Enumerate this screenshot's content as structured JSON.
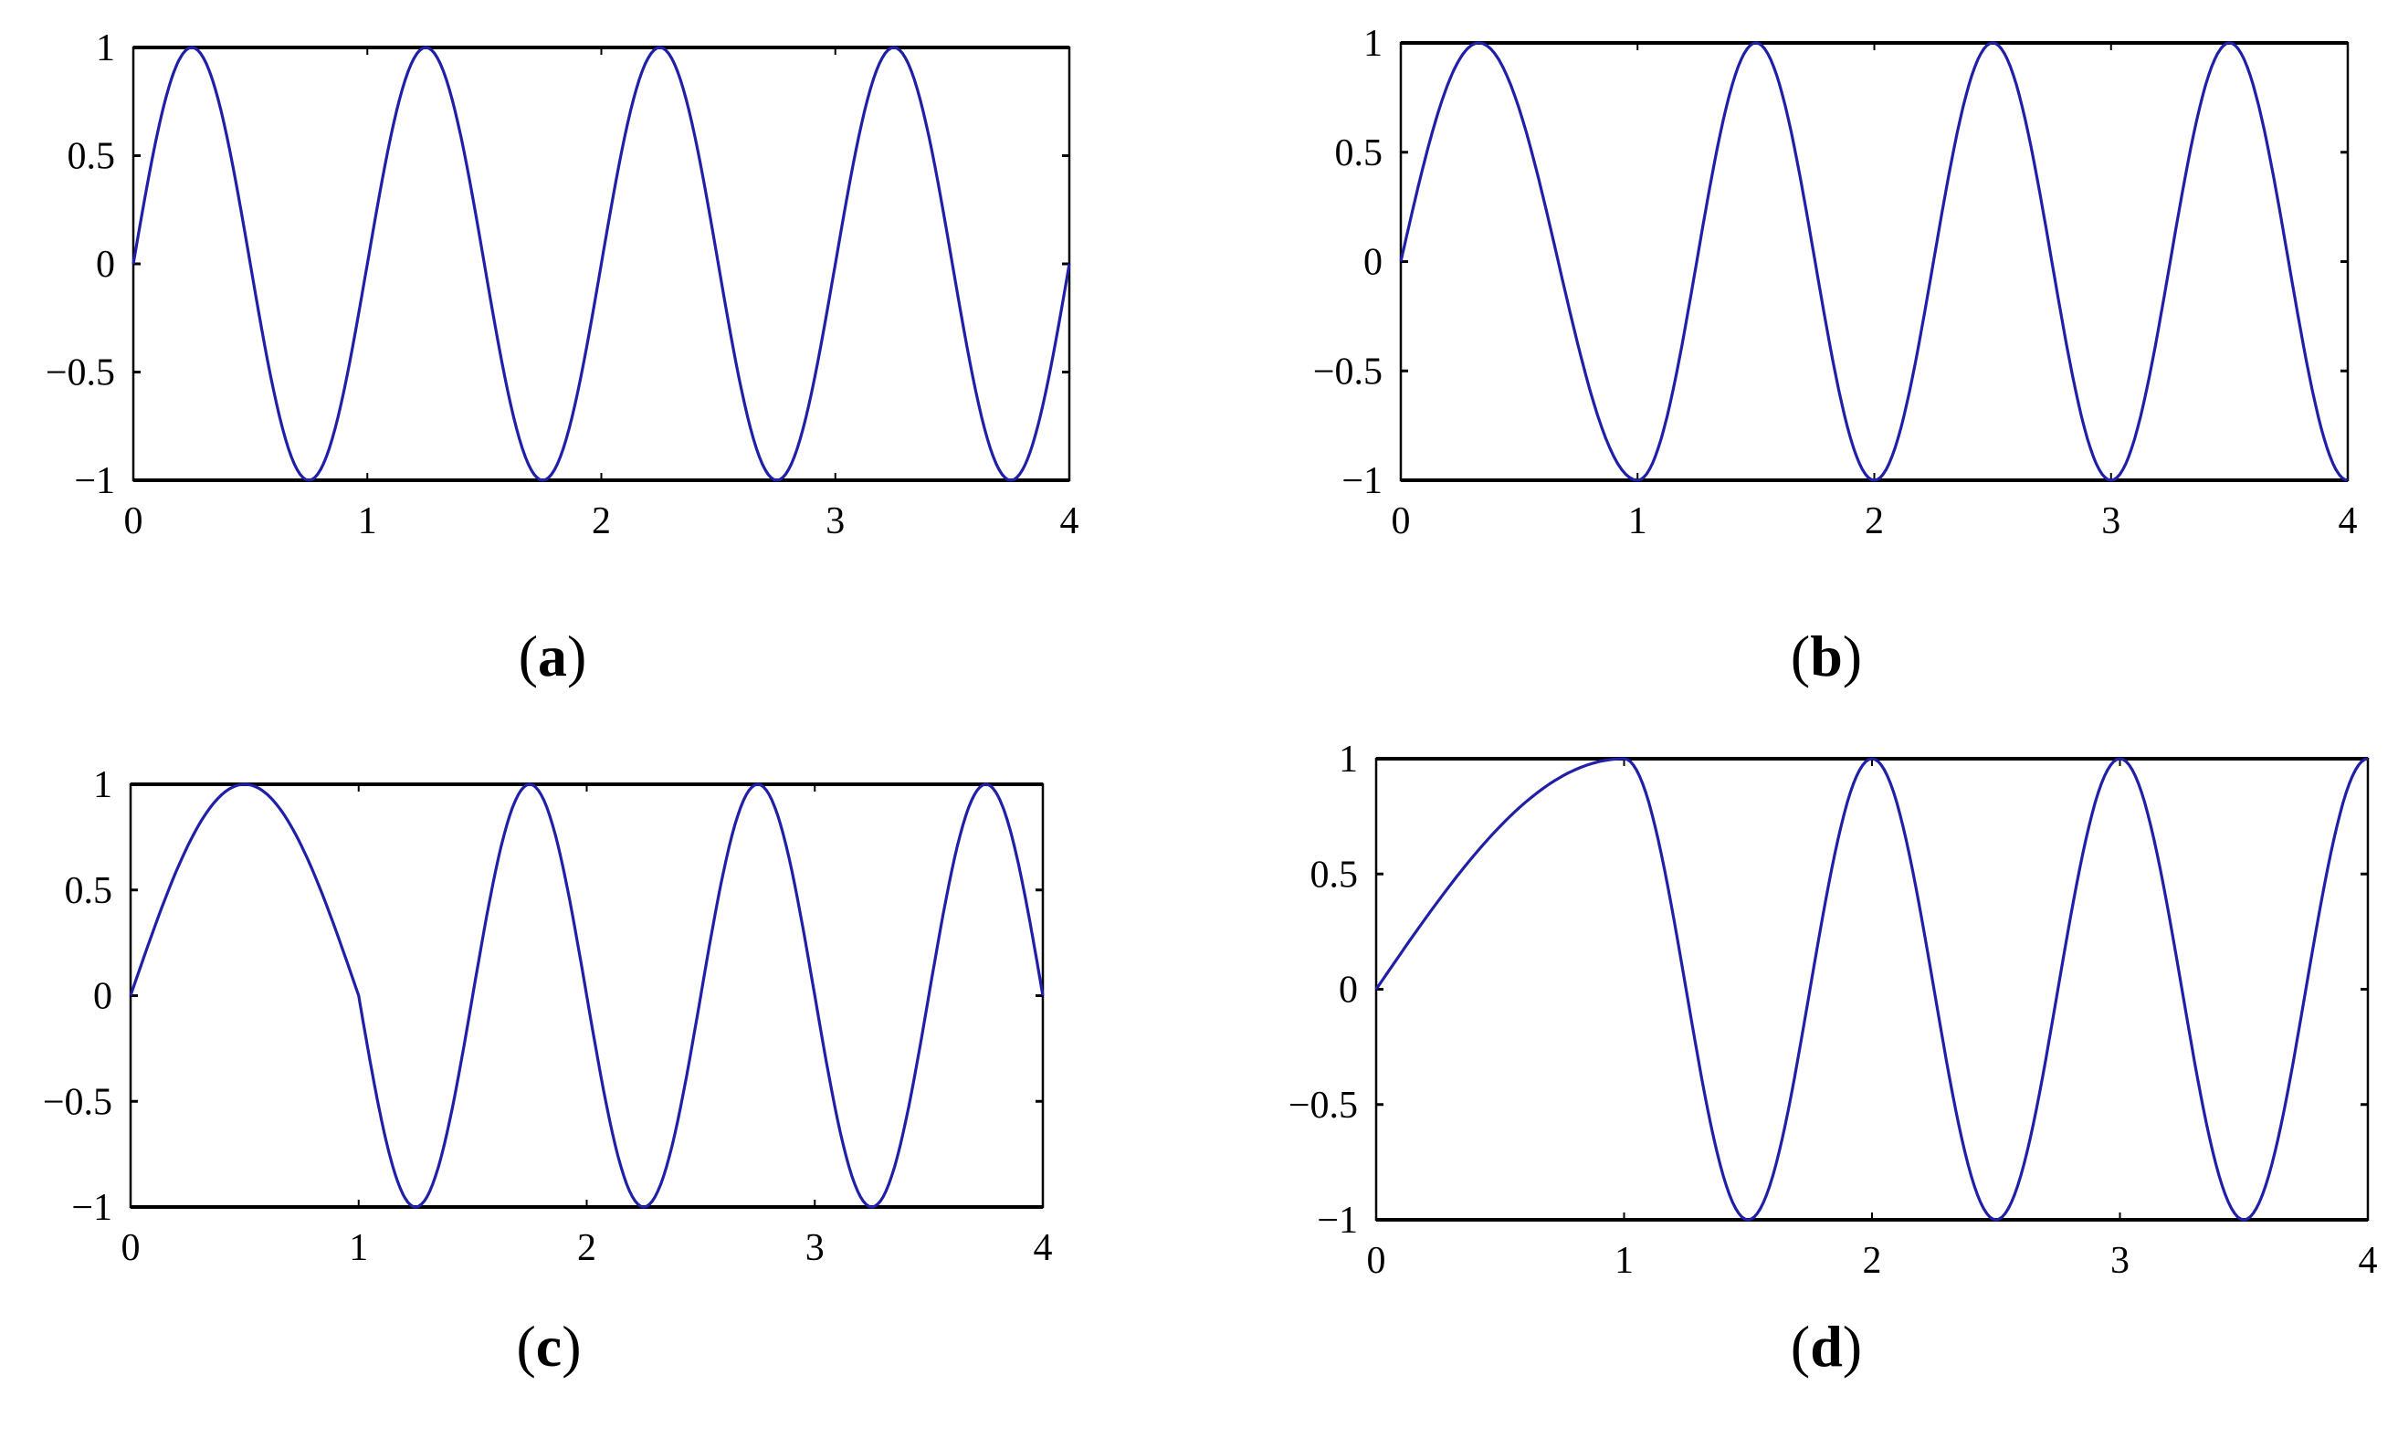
{
  "chart_data": [
    {
      "type": "line",
      "panel_label": "a",
      "xlim": [
        0,
        4
      ],
      "ylim": [
        -1,
        1
      ],
      "xticks": [
        "0",
        "1",
        "2",
        "3",
        "4"
      ],
      "yticks": [
        "1",
        "0.5",
        "0",
        "−0.5",
        "−1"
      ],
      "xtick_values": [
        0,
        1,
        2,
        3,
        4
      ],
      "ytick_values": [
        1,
        0.5,
        0,
        -0.5,
        -1
      ],
      "grid": false,
      "line_color": "#1f1fa8",
      "series": [
        {
          "x": [
            0,
            0.25,
            0.75,
            1.25,
            1.75,
            2.25,
            2.75,
            3.25,
            3.75,
            4
          ],
          "y": [
            0,
            1,
            -1,
            1,
            -1,
            1,
            -1,
            1,
            -1,
            0
          ]
        }
      ]
    },
    {
      "type": "line",
      "panel_label": "b",
      "xlim": [
        0,
        4
      ],
      "ylim": [
        -1,
        1
      ],
      "xticks": [
        "0",
        "1",
        "2",
        "3",
        "4"
      ],
      "yticks": [
        "1",
        "0.5",
        "0",
        "−0.5",
        "−1"
      ],
      "xtick_values": [
        0,
        1,
        2,
        3,
        4
      ],
      "ytick_values": [
        1,
        0.5,
        0,
        -0.5,
        -1
      ],
      "grid": false,
      "line_color": "#1f1fa8",
      "series": [
        {
          "x": [
            0,
            0.33,
            1,
            1.5,
            2,
            2.5,
            3,
            3.5,
            4
          ],
          "y": [
            0,
            1,
            -1,
            1,
            -1,
            1,
            -1,
            1,
            -1
          ]
        }
      ]
    },
    {
      "type": "line",
      "panel_label": "c",
      "xlim": [
        0,
        4
      ],
      "ylim": [
        -1,
        1
      ],
      "xticks": [
        "0",
        "1",
        "2",
        "3",
        "4"
      ],
      "yticks": [
        "1",
        "0.5",
        "0",
        "−0.5",
        "−1"
      ],
      "xtick_values": [
        0,
        1,
        2,
        3,
        4
      ],
      "ytick_values": [
        1,
        0.5,
        0,
        -0.5,
        -1
      ],
      "grid": false,
      "line_color": "#1f1fa8",
      "series": [
        {
          "x": [
            0,
            0.5,
            1,
            1.25,
            1.75,
            2.25,
            2.75,
            3.25,
            3.75,
            4
          ],
          "y": [
            0,
            1,
            0,
            -1,
            1,
            -1,
            1,
            -1,
            1,
            0
          ]
        }
      ]
    },
    {
      "type": "line",
      "panel_label": "d",
      "xlim": [
        0,
        4
      ],
      "ylim": [
        -1,
        1
      ],
      "xticks": [
        "0",
        "1",
        "2",
        "3",
        "4"
      ],
      "yticks": [
        "1",
        "0.5",
        "0",
        "−0.5",
        "−1"
      ],
      "xtick_values": [
        0,
        1,
        2,
        3,
        4
      ],
      "ytick_values": [
        1,
        0.5,
        0,
        -0.5,
        -1
      ],
      "grid": false,
      "line_color": "#1f1fa8",
      "series": [
        {
          "x": [
            0,
            1,
            1.5,
            2,
            2.5,
            3,
            3.5,
            4
          ],
          "y": [
            0,
            1,
            -1,
            1,
            -1,
            1,
            -1,
            1
          ]
        }
      ]
    }
  ]
}
